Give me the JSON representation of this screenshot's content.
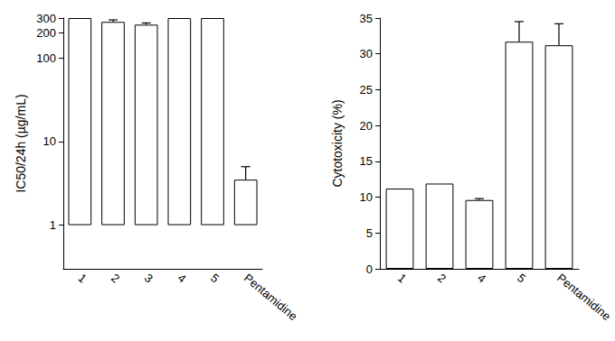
{
  "chart_data": [
    {
      "type": "bar",
      "categories": [
        "1",
        "2",
        "3",
        "4",
        "5",
        "Pentamidine"
      ],
      "values": [
        300,
        270,
        250,
        300,
        300,
        3.5
      ],
      "errors": [
        0,
        15,
        12,
        0,
        0,
        1.5
      ],
      "ylabel": "IC50/24h (µg/mL)",
      "log": "y",
      "ylim": [
        0.3,
        300
      ],
      "yticks": [
        1,
        10,
        100,
        200,
        300
      ],
      "color": "#ffffff",
      "grid": false
    },
    {
      "type": "bar",
      "categories": [
        "1",
        "2",
        "4",
        "5",
        "Pentamidine"
      ],
      "values": [
        11.2,
        11.9,
        9.6,
        31.7,
        31.2
      ],
      "errors": [
        0,
        0,
        0.2,
        2.8,
        3.0
      ],
      "ylabel": "Cytotoxicity (%)",
      "ylim": [
        0,
        35
      ],
      "yticks": [
        0,
        5,
        10,
        15,
        20,
        25,
        30,
        35
      ],
      "color": "#ffffff",
      "grid": false
    }
  ]
}
